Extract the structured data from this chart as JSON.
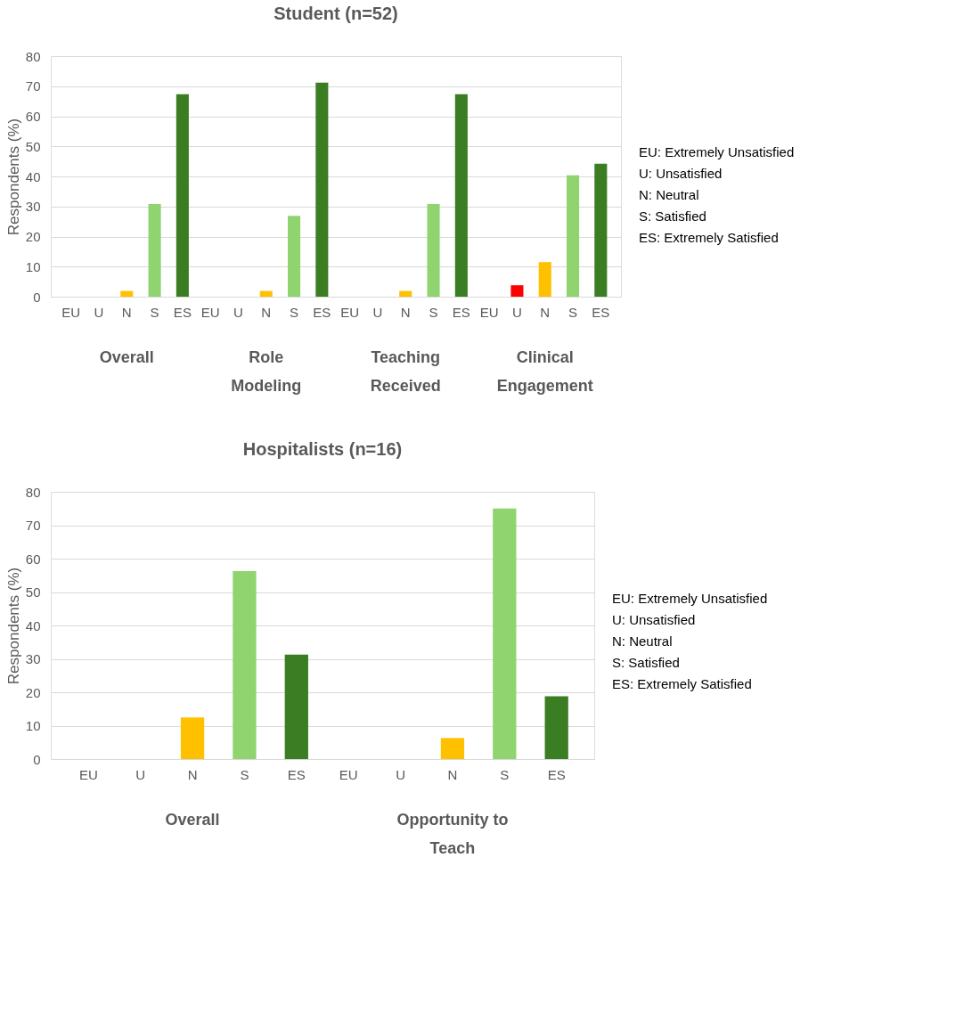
{
  "chart_data": [
    {
      "type": "bar",
      "title": "Student (n=52)",
      "ylabel": "Respondents (%)",
      "categories": [
        "EU",
        "U",
        "N",
        "S",
        "ES",
        "EU",
        "U",
        "N",
        "S",
        "ES",
        "EU",
        "U",
        "N",
        "S",
        "ES",
        "EU",
        "U",
        "N",
        "S",
        "ES"
      ],
      "values": [
        0,
        0,
        1.9,
        30.8,
        67.3,
        0,
        0,
        1.9,
        26.9,
        71.2,
        0,
        0,
        1.9,
        30.8,
        67.3,
        0,
        3.8,
        11.5,
        40.4,
        44.2
      ],
      "colors": [
        "#ff0000",
        "#ff0000",
        "#ffc000",
        "#8fd46e",
        "#3a7d22",
        "#ff0000",
        "#ff0000",
        "#ffc000",
        "#8fd46e",
        "#3a7d22",
        "#ff0000",
        "#ff0000",
        "#ffc000",
        "#8fd46e",
        "#3a7d22",
        "#ff0000",
        "#ff0000",
        "#ffc000",
        "#8fd46e",
        "#3a7d22"
      ],
      "ylim": [
        0,
        80
      ],
      "yticks": [
        0,
        10,
        20,
        30,
        40,
        50,
        60,
        70,
        80
      ],
      "grid": "y",
      "annotations": [
        "Overall",
        "Role\nModeling",
        "Teaching\nReceived",
        "Clinical\nEngagement",
        "EU: Extremely Unsatisfied",
        "U: Unsatisfied",
        "N: Neutral",
        "S: Satisfied",
        "ES: Extremely Satisfied"
      ]
    },
    {
      "type": "bar",
      "title": "Hospitalists (n=16)",
      "ylabel": "Respondents (%)",
      "categories": [
        "EU",
        "U",
        "N",
        "S",
        "ES",
        "EU",
        "U",
        "N",
        "S",
        "ES"
      ],
      "values": [
        0,
        0,
        12.5,
        56.3,
        31.3,
        0,
        0,
        6.3,
        75,
        18.8
      ],
      "colors": [
        "#ff0000",
        "#ff0000",
        "#ffc000",
        "#8fd46e",
        "#3a7d22",
        "#ff0000",
        "#ff0000",
        "#ffc000",
        "#8fd46e",
        "#3a7d22"
      ],
      "ylim": [
        0,
        80
      ],
      "yticks": [
        0,
        10,
        20,
        30,
        40,
        50,
        60,
        70,
        80
      ],
      "grid": "y",
      "annotations": [
        "Overall",
        "Opportunity to\nTeach",
        "EU: Extremely Unsatisfied",
        "U: Unsatisfied",
        "N: Neutral",
        "S: Satisfied",
        "ES: Extremely Satisfied"
      ]
    }
  ]
}
